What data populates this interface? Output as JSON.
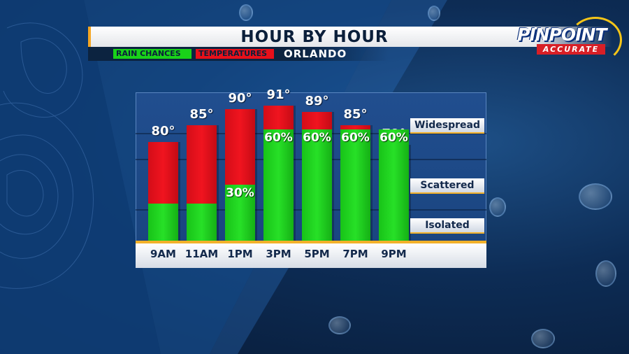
{
  "header": {
    "title": "HOUR BY HOUR",
    "rain_tag": "RAIN CHANCES",
    "temp_tag": "TEMPERATURES",
    "city": "ORLANDO"
  },
  "logo": {
    "line1": "PINPOINT",
    "line2": "ACCURATE"
  },
  "colors": {
    "rain": "#19d219",
    "temperature": "#e8101a",
    "accent": "#f2b12a",
    "navy": "#0c2340"
  },
  "chart_data": {
    "type": "bar",
    "categories": [
      "9AM",
      "11AM",
      "1PM",
      "3PM",
      "5PM",
      "7PM",
      "9PM"
    ],
    "series": [
      {
        "name": "TEMPERATURES",
        "values": [
          80,
          85,
          90,
          91,
          89,
          85,
          79
        ],
        "labels": [
          "80°",
          "85°",
          "90°",
          "91°",
          "89°",
          "85°",
          "79°"
        ]
      },
      {
        "name": "RAIN CHANCES",
        "values": [
          null,
          null,
          30,
          60,
          60,
          60,
          60
        ],
        "labels": [
          "",
          "",
          "30%",
          "60%",
          "60%",
          "60%",
          "60%"
        ],
        "bar_levels_percent": [
          20,
          20,
          30,
          60,
          60,
          60,
          60
        ]
      }
    ],
    "rain_levels": [
      "Widespread",
      "Scattered",
      "Isolated"
    ],
    "temperature_scale": [
      50,
      95
    ],
    "rain_scale_percent": [
      0,
      100
    ]
  }
}
